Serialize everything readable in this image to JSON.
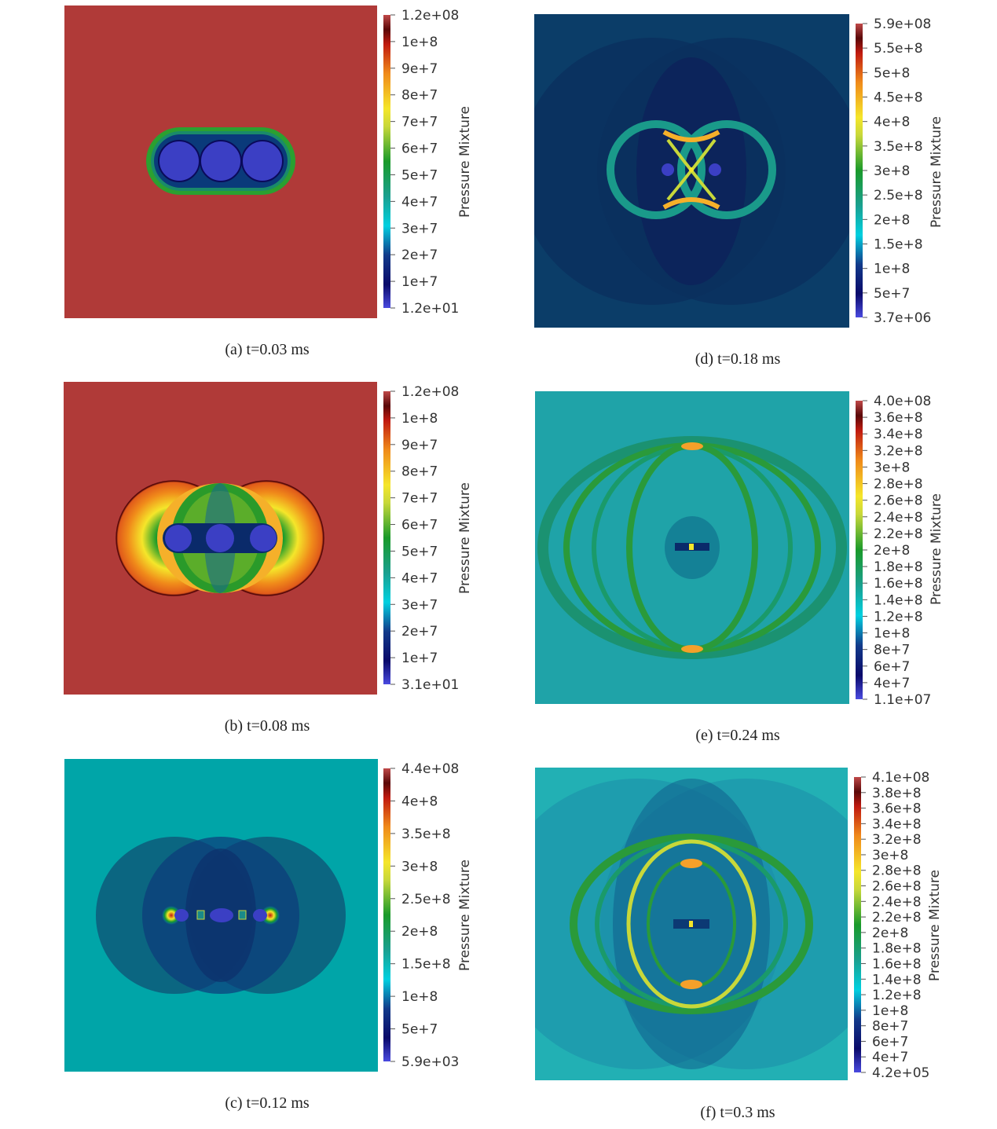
{
  "colormap": [
    "#3b3fc4",
    "#0a0a5a",
    "#0d2f6b",
    "#00c8d8",
    "#1a9a8a",
    "#1a8a2a",
    "#8cc02a",
    "#f5e62a",
    "#f58a1a",
    "#c8281a",
    "#5a0a0a",
    "#b03a38"
  ],
  "colorbar_title": "Pressure Mixture",
  "panels": [
    {
      "id": "a",
      "caption": "(a) t=0.03 ms",
      "background": "#b03a38",
      "ticks": [
        "1.2e+08",
        "1e+8",
        "9e+7",
        "8e+7",
        "7e+7",
        "6e+7",
        "5e+7",
        "4e+7",
        "3e+7",
        "2e+7",
        "1e+7",
        "1.2e+01"
      ]
    },
    {
      "id": "b",
      "caption": "(b) t=0.08 ms",
      "background": "#b03a38",
      "ticks": [
        "1.2e+08",
        "1e+8",
        "9e+7",
        "8e+7",
        "7e+7",
        "6e+7",
        "5e+7",
        "4e+7",
        "3e+7",
        "2e+7",
        "1e+7",
        "3.1e+01"
      ]
    },
    {
      "id": "c",
      "caption": "(c) t=0.12 ms",
      "background": "#00a5a8",
      "ticks": [
        "4.4e+08",
        "4e+8",
        "3.5e+8",
        "3e+8",
        "2.5e+8",
        "2e+8",
        "1.5e+8",
        "1e+8",
        "5e+7",
        "5.9e+03"
      ]
    },
    {
      "id": "d",
      "caption": "(d) t=0.18 ms",
      "background": "#0b3d68",
      "ticks": [
        "5.9e+08",
        "5.5e+8",
        "5e+8",
        "4.5e+8",
        "4e+8",
        "3.5e+8",
        "3e+8",
        "2.5e+8",
        "2e+8",
        "1.5e+8",
        "1e+8",
        "5e+7",
        "3.7e+06"
      ]
    },
    {
      "id": "e",
      "caption": "(e) t=0.24 ms",
      "background": "#1fa3a8",
      "ticks": [
        "4.0e+08",
        "3.6e+8",
        "3.4e+8",
        "3.2e+8",
        "3e+8",
        "2.8e+8",
        "2.6e+8",
        "2.4e+8",
        "2.2e+8",
        "2e+8",
        "1.8e+8",
        "1.6e+8",
        "1.4e+8",
        "1.2e+8",
        "1e+8",
        "8e+7",
        "6e+7",
        "4e+7",
        "1.1e+07"
      ]
    },
    {
      "id": "f",
      "caption": "(f) t=0.3 ms",
      "background": "#22b0b4",
      "ticks": [
        "4.1e+08",
        "3.8e+8",
        "3.6e+8",
        "3.4e+8",
        "3.2e+8",
        "3e+8",
        "2.8e+8",
        "2.6e+8",
        "2.4e+8",
        "2.2e+8",
        "2e+8",
        "1.8e+8",
        "1.6e+8",
        "1.4e+8",
        "1.2e+8",
        "1e+8",
        "8e+7",
        "6e+7",
        "4e+7",
        "4.2e+05"
      ]
    }
  ]
}
